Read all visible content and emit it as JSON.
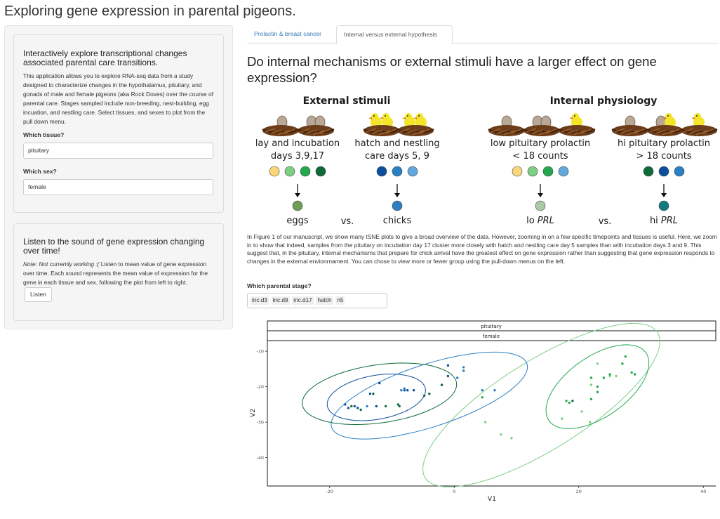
{
  "app_title": "Exploring gene expression in parental pigeons.",
  "sidebar": {
    "explore": {
      "heading": "Interactively explore transcriptional changes associated parental care transitions.",
      "text": "This application allows you to explore RNA-seq data from a study designed to characterize changes in the hypothalamus, pituitary, and gonads of male and female pigeons (aka Rock Doves) over the course of parental care. Stages sampled include non-breeding, nest-building, egg incuation, and nestling care. Select tissues, and sexes to plot from the pull down menu.",
      "tissue_label": "Which tissue?",
      "tissue_value": "pituitary",
      "sex_label": "Which sex?",
      "sex_value": "female"
    },
    "listen": {
      "heading": "Listen to the sound of gene expression changing over time!",
      "note": "Note: Not currently working :(",
      "text": " Listen to mean value of gene expression over time. Each sound represents the mean value of expression for the gene in each tissue and sex, following the plot from left to right.",
      "button_label": "Listen"
    }
  },
  "tabs": [
    {
      "label": "Prolactin & breast cancer",
      "active": false
    },
    {
      "label": "Internal versus external hypothesis",
      "active": true
    }
  ],
  "main": {
    "title": "Do internal mechanisms or external stimuli have a larger effect on gene expression?",
    "figure": {
      "external_header": "External stimuli",
      "internal_header": "Internal physiology",
      "groups": [
        {
          "label1": "lay and incubation",
          "label2": "days 3,9,17",
          "result": "eggs",
          "result_italic": "",
          "dots": [
            "#fbd67a",
            "#7ecf86",
            "#23a84f",
            "#0d6b39"
          ],
          "result_color": "#6f9e55"
        },
        {
          "label1": "hatch and nestling",
          "label2": "care days 5, 9",
          "result": "chicks",
          "result_italic": "",
          "dots": [
            "#0b4e9b",
            "#2980c3",
            "#62a8dc"
          ],
          "result_color": "#2e7fc2"
        },
        {
          "label1": "low pituitary prolactin",
          "label2": "< 18 counts",
          "result": "lo ",
          "result_italic": "PRL",
          "dots": [
            "#fbd67a",
            "#7ecf86",
            "#23a84f",
            "#62a8dc"
          ],
          "result_color": "#a9c9a4"
        },
        {
          "label1": "hi pituitary prolactin",
          "label2": "> 18 counts",
          "result": "hi ",
          "result_italic": "PRL",
          "dots": [
            "#0d6b39",
            "#0b4e9b",
            "#2980c3"
          ],
          "result_color": "#0f7b80"
        }
      ],
      "vs_label": "vs."
    },
    "description": "In Figure 1 of our manuscript, we show many tSNE plots to give a broad overview of the data. However, zooming in on a few specific timepoints and tissues is useful. Here, we zoom in to show that indeed, samples from the pituitary on incubation day 17 cluster more closely with hatch and nestling care day 5 samples than with incubation days 3 and 9. This suggest that, in the pituitary, internal mechanisms that prepare for chick arrival have the greatest effect on gene expression rather than suggesting that gene expression responds to changes in the external envionrnament. You can chose to view more or fewer group using the pull-down menus on the left.",
    "stage_label": "Which parental stage?",
    "stages": [
      "inc.d3",
      "inc.d9",
      "inc.d17",
      "hatch",
      "n5"
    ]
  },
  "colors": {
    "inc.d3": "#7ecf86",
    "inc.d9": "#23a84f",
    "inc.d17": "#0d6b39",
    "hatch": "#0b4e9b",
    "n5": "#2980c3"
  },
  "chart_data": {
    "type": "scatter",
    "facet_labels": [
      "pituitary",
      "female"
    ],
    "xlabel": "V1",
    "ylabel": "V2",
    "xlim": [
      -30,
      42
    ],
    "ylim": [
      -48,
      -7
    ],
    "xticks": [
      -20,
      0,
      20,
      40
    ],
    "yticks": [
      -10,
      -20,
      -30,
      -40
    ],
    "series": [
      {
        "key": "inc.d3",
        "color": "#7ecf86",
        "points": [
          [
            5,
            -30
          ],
          [
            7.5,
            -33.5
          ],
          [
            9.2,
            -34.5
          ],
          [
            21.8,
            -30
          ],
          [
            17.3,
            -29
          ],
          [
            20.5,
            -27
          ],
          [
            22,
            -19.5
          ],
          [
            23,
            -13.5
          ],
          [
            25,
            -17
          ],
          [
            26,
            -17
          ]
        ],
        "ellipse": {
          "cx": 14,
          "cy": -25.2,
          "rx": 44,
          "ry": 12.5,
          "angle": 32
        }
      },
      {
        "key": "inc.d9",
        "color": "#23a84f",
        "points": [
          [
            22,
            -17.5
          ],
          [
            24,
            -17.5
          ],
          [
            25,
            -16.5
          ],
          [
            23,
            -20
          ],
          [
            23,
            -21.5
          ],
          [
            22,
            -23.5
          ],
          [
            18,
            -24
          ],
          [
            18.5,
            -24.5
          ],
          [
            27,
            -13.5
          ],
          [
            27.5,
            -11.5
          ],
          [
            28.5,
            -16
          ],
          [
            29,
            -16.5
          ],
          [
            4.5,
            -23
          ]
        ],
        "ellipse": {
          "cx": 23,
          "cy": -20,
          "rx": 19,
          "ry": 8.5,
          "angle": 35
        }
      },
      {
        "key": "inc.d17",
        "color": "#0d6b39",
        "points": [
          [
            -16.5,
            -25.5
          ],
          [
            -15,
            -26.5
          ],
          [
            -11,
            -25.5
          ],
          [
            -13,
            -22
          ],
          [
            -9,
            -25
          ],
          [
            -8.8,
            -25.5
          ],
          [
            -4.8,
            -22.5
          ],
          [
            -2,
            -19.5
          ],
          [
            -4,
            -22
          ],
          [
            19,
            -24
          ]
        ],
        "ellipse": {
          "cx": -12,
          "cy": -22,
          "rx": 25,
          "ry": 8.2,
          "angle": 8
        }
      },
      {
        "key": "hatch",
        "color": "#0b4e9b",
        "points": [
          [
            -17.5,
            -25
          ],
          [
            -17,
            -26
          ],
          [
            -16,
            -25.5
          ],
          [
            -15.5,
            -26
          ],
          [
            -13.5,
            -22
          ],
          [
            -12.5,
            -25.5
          ],
          [
            -12,
            -19
          ],
          [
            -8,
            -21
          ],
          [
            -7.5,
            -21
          ],
          [
            -6.5,
            -21
          ],
          [
            -1,
            -14
          ],
          [
            -1,
            -17
          ]
        ],
        "ellipse": {
          "cx": -12.5,
          "cy": -23,
          "rx": 16,
          "ry": 6.2,
          "angle": 10
        }
      },
      {
        "key": "n5",
        "color": "#2980c3",
        "points": [
          [
            -14,
            -25.5
          ],
          [
            -8.5,
            -21
          ],
          [
            -8,
            -20.5
          ],
          [
            0.5,
            -17.5
          ],
          [
            1.5,
            -15.5
          ],
          [
            1.5,
            -14.5
          ],
          [
            4.5,
            -21
          ],
          [
            6.5,
            -21
          ]
        ],
        "ellipse": {
          "cx": -4,
          "cy": -22.5,
          "rx": 33,
          "ry": 8.8,
          "angle": 18
        }
      }
    ]
  }
}
